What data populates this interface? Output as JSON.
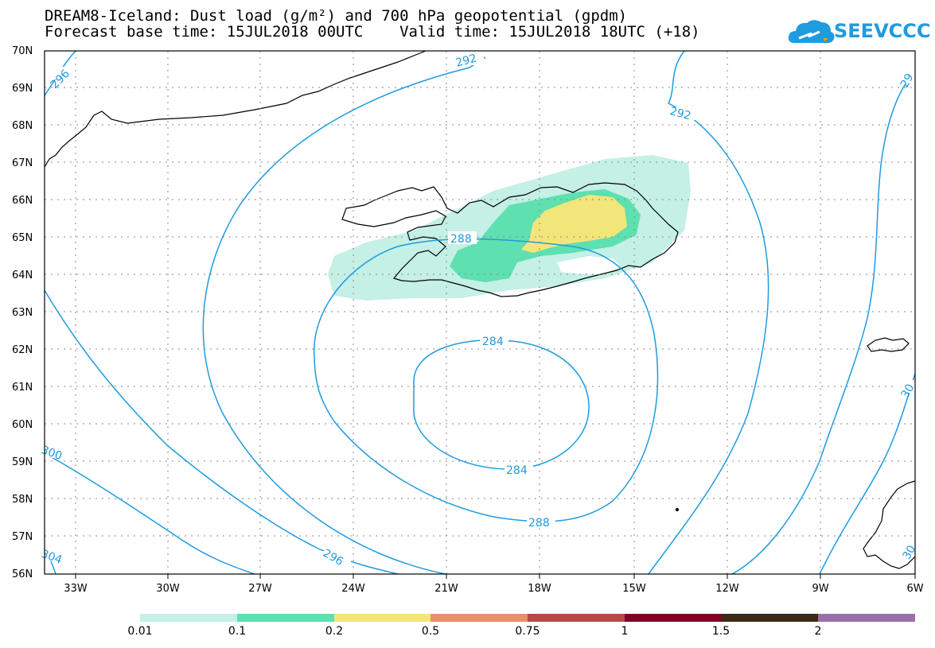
{
  "title": {
    "line1": "DREAM8-Iceland: Dust load (g/m²) and 700 hPa geopotential (gpdm)",
    "line2": "Forecast base time: 15JUL2018 00UTC    Valid time: 15JUL2018 18UTC (+18)"
  },
  "logo": {
    "text": "SEEVCCC"
  },
  "map": {
    "lat_labels": [
      "70N",
      "69N",
      "68N",
      "67N",
      "66N",
      "65N",
      "64N",
      "63N",
      "62N",
      "61N",
      "60N",
      "59N",
      "58N",
      "57N",
      "56N"
    ],
    "lon_labels": [
      "33W",
      "30W",
      "27W",
      "24W",
      "21W",
      "18W",
      "15W",
      "12W",
      "9W",
      "6W"
    ],
    "contour_labels": {
      "c292a": "292",
      "c292b": "292",
      "c296a": "296",
      "c296b": "296",
      "c288a": "288",
      "c288b": "288",
      "c284a": "284",
      "c284b": "284",
      "c300a": "300",
      "c304a": "304",
      "c_right1": "29",
      "c_right2": "30",
      "c_right3": "30"
    },
    "colors": {
      "contour": "#1f9be0",
      "dust_001": "#c4f0e6",
      "dust_01": "#5ee0b0",
      "dust_02": "#f2e57a"
    }
  },
  "colorbar": {
    "labels": [
      "0.01",
      "0.1",
      "0.2",
      "0.5",
      "0.75",
      "1",
      "1.5",
      "2"
    ],
    "colors": [
      "#c4f0e6",
      "#5ee0b0",
      "#f2e57a",
      "#e8906a",
      "#b44a45",
      "#800028",
      "#3b2a14",
      "#9a6ea8"
    ]
  }
}
